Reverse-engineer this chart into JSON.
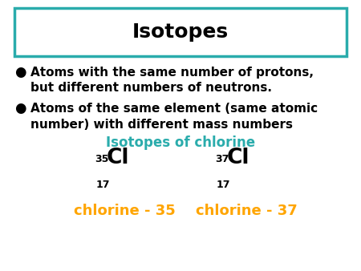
{
  "title": "Isotopes",
  "title_color": "#000000",
  "title_fontsize": 18,
  "box_color": "#2AACAC",
  "bullet1_line1": "Atoms with the same number of protons,",
  "bullet1_line2": "but different numbers of neutrons.",
  "bullet2_line1": "Atoms of the same element (same atomic",
  "bullet2_line2": "number) with different mass numbers",
  "bullet_color": "#000000",
  "bullet_fontsize": 11,
  "subheading": "Isotopes of chlorine",
  "subheading_color": "#2AACAC",
  "subheading_fontsize": 12,
  "isotope1_symbol": "Cl",
  "isotope1_mass": "35",
  "isotope1_atomic": "17",
  "isotope1_name": "chlorine - 35",
  "isotope2_symbol": "Cl",
  "isotope2_mass": "37",
  "isotope2_atomic": "17",
  "isotope2_name": "chlorine - 37",
  "isotope_symbol_color": "#000000",
  "isotope_name_color": "#FFA500",
  "isotope_atomic_color": "#000000",
  "background_color": "#ffffff"
}
